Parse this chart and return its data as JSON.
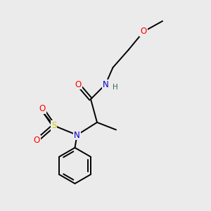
{
  "bg_color": "#ebebeb",
  "bond_color": "#000000",
  "atom_colors": {
    "O": "#ff0000",
    "N": "#0000cc",
    "S": "#cccc00",
    "H": "#336666",
    "C": "#000000"
  },
  "lw": 1.4,
  "fs": 8.5
}
